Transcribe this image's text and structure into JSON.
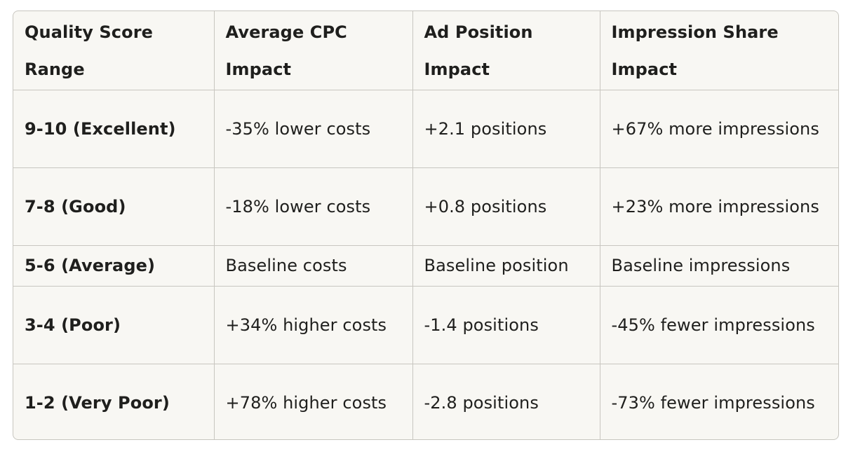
{
  "table": {
    "headers": [
      "Quality Score Range",
      "Average CPC Impact",
      "Ad Position Impact",
      "Impression Share Impact"
    ],
    "rows": [
      [
        "9-10 (Excellent)",
        "-35% lower costs",
        "+2.1 positions",
        "+67% more impressions"
      ],
      [
        "7-8 (Good)",
        "-18% lower costs",
        "+0.8 positions",
        "+23% more impressions"
      ],
      [
        "5-6 (Average)",
        "Baseline costs",
        "Baseline position",
        "Baseline impressions"
      ],
      [
        "3-4 (Poor)",
        "+34% higher costs",
        "-1.4 positions",
        "-45% fewer impressions"
      ],
      [
        "1-2 (Very Poor)",
        "+78% higher costs",
        "-2.8 positions",
        "-73% fewer impressions"
      ]
    ]
  }
}
